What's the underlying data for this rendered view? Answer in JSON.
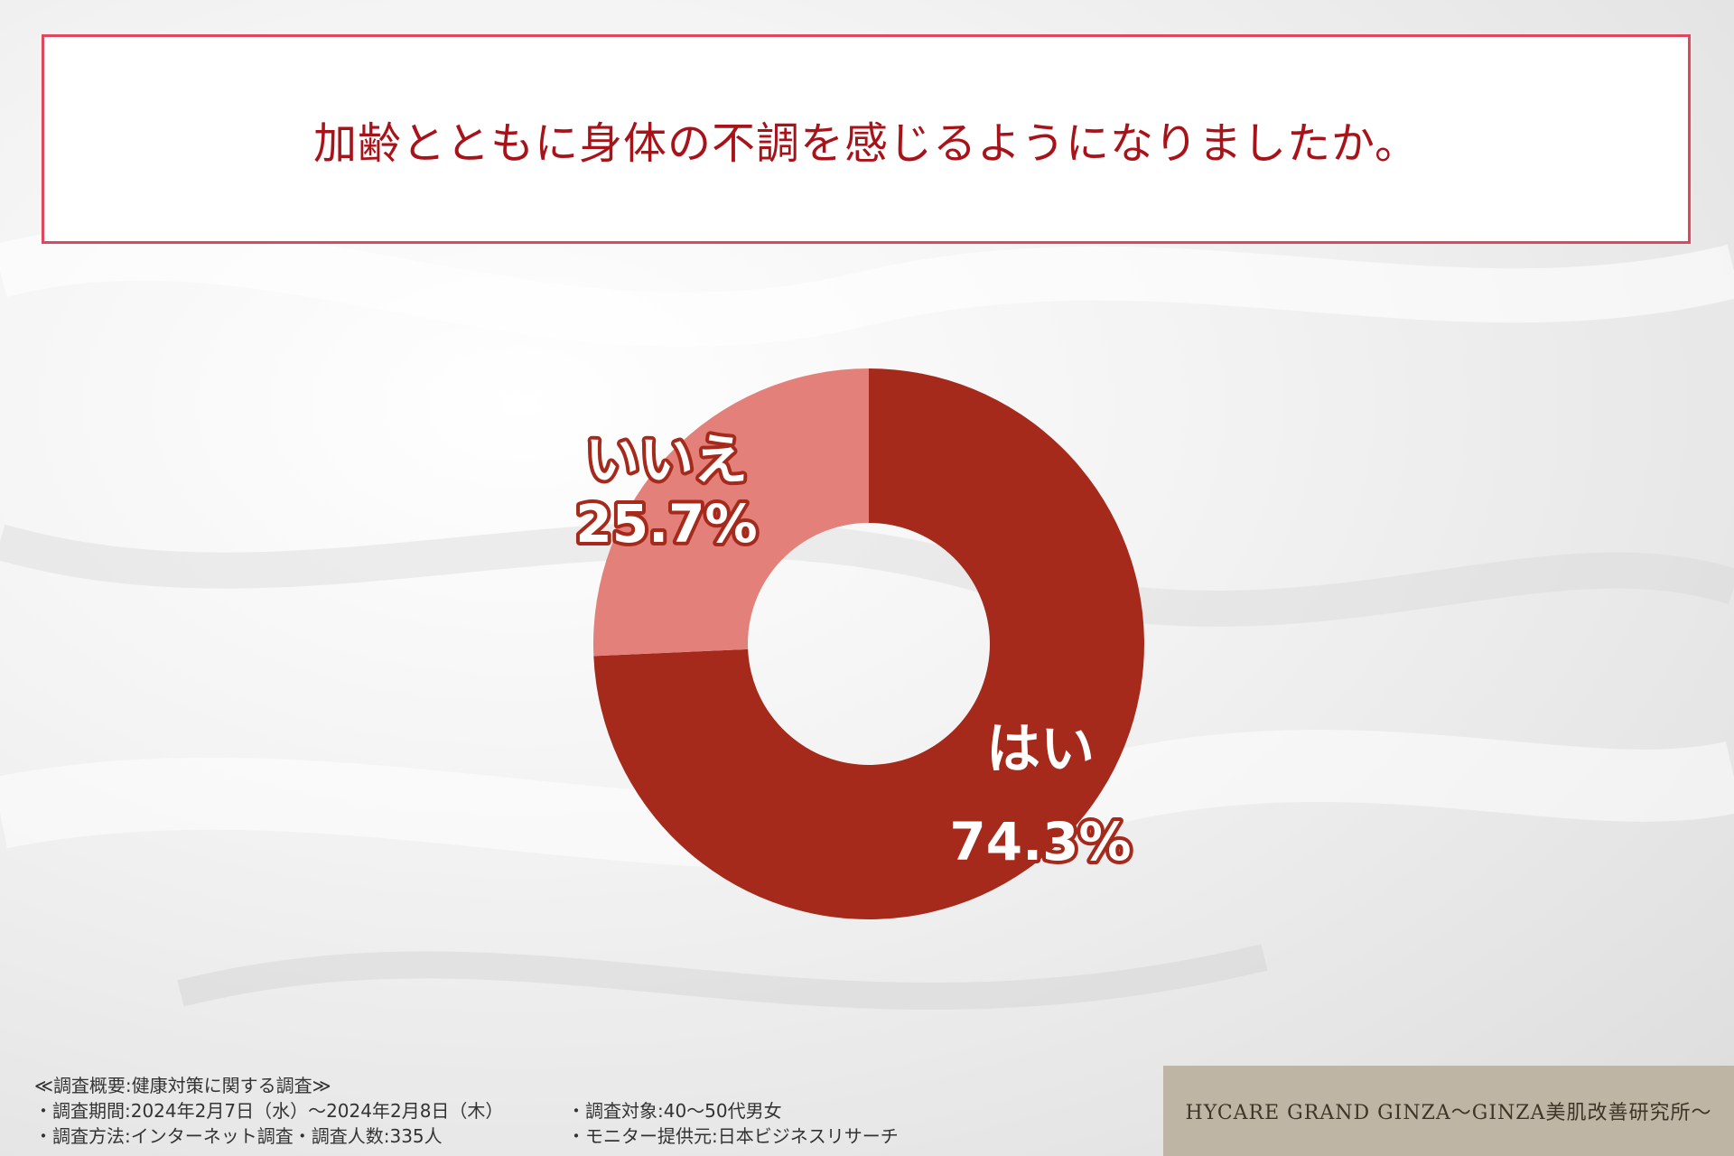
{
  "title": "加齢とともに身体の不調を感じるようになりましたか。",
  "chart_data": {
    "type": "pie",
    "donut": true,
    "title": "加齢とともに身体の不調を感じるようになりましたか。",
    "categories": [
      "はい",
      "いいえ"
    ],
    "values": [
      74.3,
      25.7
    ],
    "value_labels": [
      "74.3%",
      "25.7%"
    ],
    "colors": [
      "#a52a1c",
      "#e3807a"
    ],
    "start_angle_deg": 0,
    "direction": "clockwise"
  },
  "footer": {
    "heading": "≪調査概要:健康対策に関する調査≫",
    "period": "・調査期間:2024年2月7日（水）〜2024年2月8日（木）",
    "method": "・調査方法:インターネット調査・調査人数:335人",
    "target": "・調査対象:40〜50代男女",
    "provider": "・モニター提供元:日本ビジネスリサーチ"
  },
  "brand": "HYCARE GRAND GINZA〜GINZA美肌改善研究所〜"
}
